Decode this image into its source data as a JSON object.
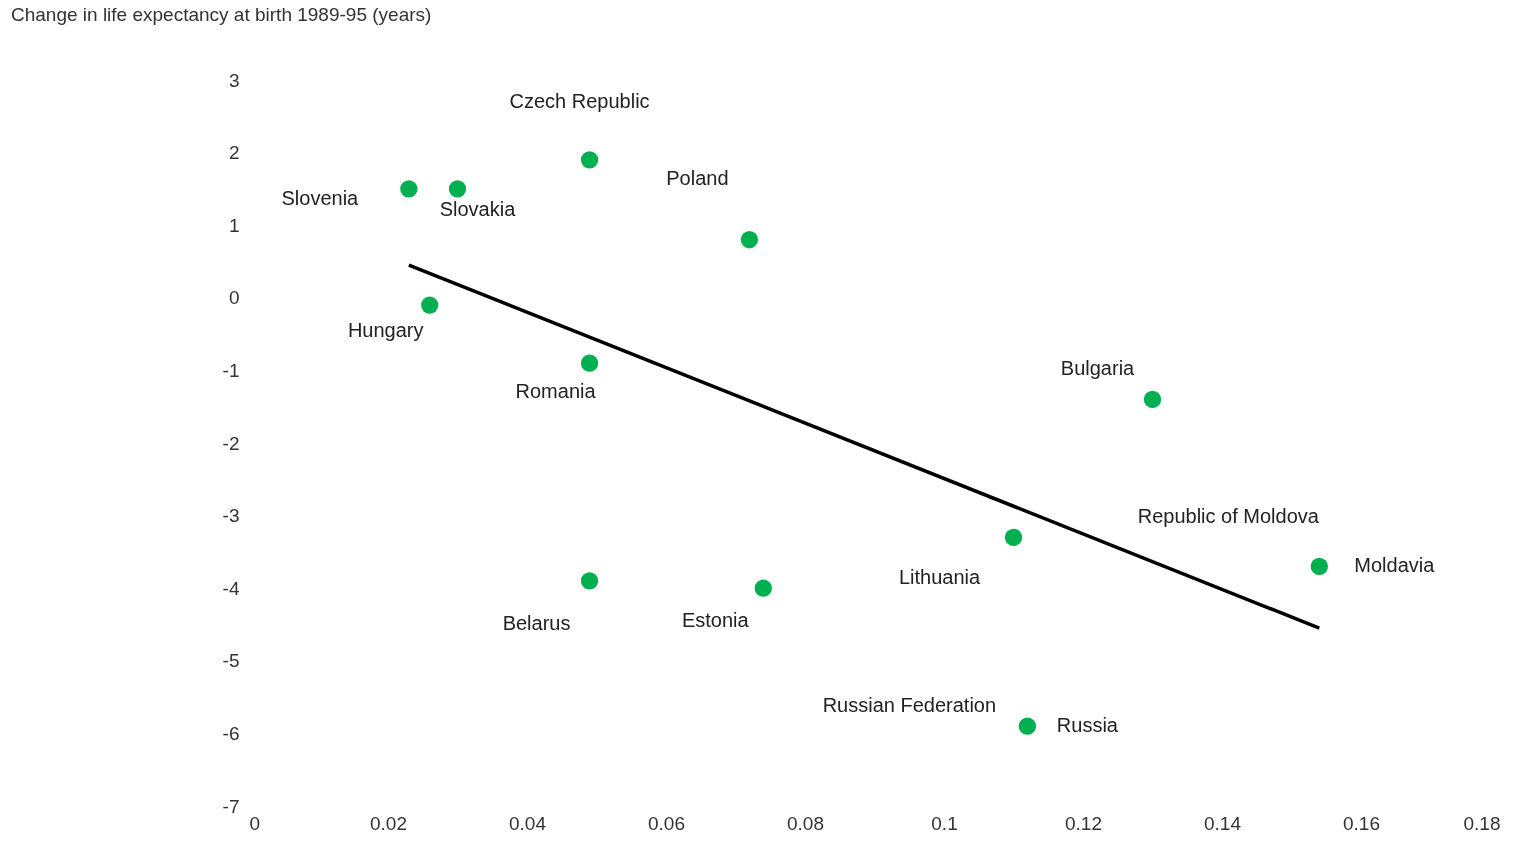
{
  "chart_data": {
    "type": "scatter",
    "title": "Change in life expectancy at birth 1989-95 (years)",
    "xlim": [
      0,
      0.18
    ],
    "xticks": [
      0,
      0.02,
      0.04,
      0.06,
      0.08,
      0.1,
      0.12,
      0.14,
      0.16,
      0.18
    ],
    "ylim": [
      -7,
      3
    ],
    "yticks": [
      -7,
      -6,
      -5,
      -4,
      -3,
      -2,
      -1,
      0,
      1,
      2,
      3
    ],
    "grid": false,
    "series": [
      {
        "color": "#00b050",
        "marker": "circle",
        "x": [
          0.023,
          0.03,
          0.049,
          0.072,
          0.026,
          0.049,
          0.13,
          0.11,
          0.154,
          0.049,
          0.074,
          0.112
        ],
        "values": [
          1.5,
          1.5,
          1.9,
          0.8,
          -0.1,
          -0.9,
          -1.4,
          -3.3,
          -3.7,
          -3.9,
          -4.0,
          -5.9
        ]
      },
      {
        "type": "line",
        "color": "#000000",
        "x": [
          0.023,
          0.154
        ],
        "values": [
          0.45,
          -4.55
        ]
      }
    ],
    "annotations": [
      {
        "text": "Czech Republic",
        "x": 0.049,
        "y": 1.9
      },
      {
        "text": "Poland",
        "x": 0.072,
        "y": 0.8
      },
      {
        "text": "Slovenia",
        "x": 0.023,
        "y": 1.5
      },
      {
        "text": "Slovakia",
        "x": 0.03,
        "y": 1.5
      },
      {
        "text": "Hungary",
        "x": 0.026,
        "y": -0.1
      },
      {
        "text": "Romania",
        "x": 0.049,
        "y": -0.9
      },
      {
        "text": "Bulgaria",
        "x": 0.13,
        "y": -1.4
      },
      {
        "text": "Republic of Moldova",
        "x": 0.154,
        "y": -3.7
      },
      {
        "text": "Moldavia",
        "x": 0.154,
        "y": -3.7
      },
      {
        "text": "Lithuania",
        "x": 0.11,
        "y": -3.3
      },
      {
        "text": "Belarus",
        "x": 0.049,
        "y": -3.9
      },
      {
        "text": "Estonia",
        "x": 0.074,
        "y": -4.0
      },
      {
        "text": "Russian Federation",
        "x": 0.112,
        "y": -5.9
      },
      {
        "text": "Russia",
        "x": 0.112,
        "y": -5.9
      }
    ]
  }
}
